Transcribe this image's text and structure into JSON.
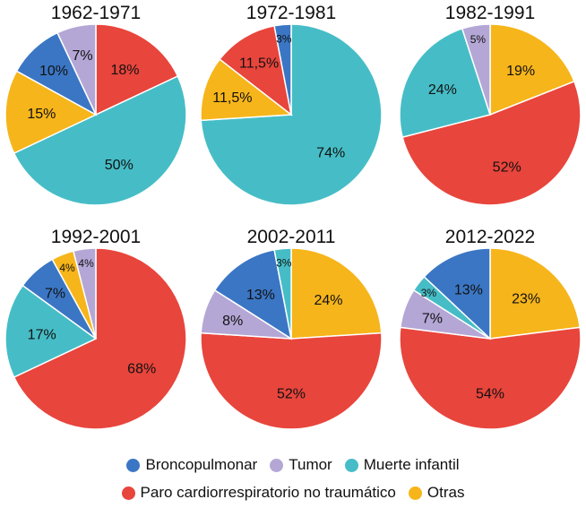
{
  "chart_data": [
    {
      "type": "pie",
      "title": "1962-1971",
      "slices": [
        {
          "category": "Paro cardiorrespiratorio no traumático",
          "value": 18,
          "label": "18%"
        },
        {
          "category": "Muerte infantil",
          "value": 50,
          "label": "50%"
        },
        {
          "category": "Otras",
          "value": 15,
          "label": "15%"
        },
        {
          "category": "Broncopulmonar",
          "value": 10,
          "label": "10%"
        },
        {
          "category": "Tumor",
          "value": 7,
          "label": "7%"
        }
      ]
    },
    {
      "type": "pie",
      "title": "1972-1981",
      "slices": [
        {
          "category": "Muerte infantil",
          "value": 74,
          "label": "74%"
        },
        {
          "category": "Otras",
          "value": 11.5,
          "label": "11,5%"
        },
        {
          "category": "Paro cardiorrespiratorio no traumático",
          "value": 11.5,
          "label": "11,5%"
        },
        {
          "category": "Broncopulmonar",
          "value": 3,
          "label": "3%"
        }
      ]
    },
    {
      "type": "pie",
      "title": "1982-1991",
      "slices": [
        {
          "category": "Otras",
          "value": 19,
          "label": "19%"
        },
        {
          "category": "Paro cardiorrespiratorio no traumático",
          "value": 52,
          "label": "52%"
        },
        {
          "category": "Muerte infantil",
          "value": 24,
          "label": "24%"
        },
        {
          "category": "Tumor",
          "value": 5,
          "label": "5%"
        }
      ]
    },
    {
      "type": "pie",
      "title": "1992-2001",
      "slices": [
        {
          "category": "Paro cardiorrespiratorio no traumático",
          "value": 68,
          "label": "68%"
        },
        {
          "category": "Muerte infantil",
          "value": 17,
          "label": "17%"
        },
        {
          "category": "Broncopulmonar",
          "value": 7,
          "label": "7%"
        },
        {
          "category": "Otras",
          "value": 4,
          "label": "4%"
        },
        {
          "category": "Tumor",
          "value": 4,
          "label": "4%"
        }
      ]
    },
    {
      "type": "pie",
      "title": "2002-2011",
      "slices": [
        {
          "category": "Otras",
          "value": 24,
          "label": "24%"
        },
        {
          "category": "Paro cardiorrespiratorio no traumático",
          "value": 52,
          "label": "52%"
        },
        {
          "category": "Tumor",
          "value": 8,
          "label": "8%"
        },
        {
          "category": "Broncopulmonar",
          "value": 13,
          "label": "13%"
        },
        {
          "category": "Muerte infantil",
          "value": 3,
          "label": "3%"
        }
      ]
    },
    {
      "type": "pie",
      "title": "2012-2022",
      "slices": [
        {
          "category": "Otras",
          "value": 23,
          "label": "23%"
        },
        {
          "category": "Paro cardiorrespiratorio no traumático",
          "value": 54,
          "label": "54%"
        },
        {
          "category": "Tumor",
          "value": 7,
          "label": "7%"
        },
        {
          "category": "Muerte infantil",
          "value": 3,
          "label": "3%"
        },
        {
          "category": "Broncopulmonar",
          "value": 13,
          "label": "13%"
        }
      ]
    }
  ],
  "legend": {
    "placement": "bottom",
    "items": [
      {
        "label": "Broncopulmonar",
        "color": "#3b76c4"
      },
      {
        "label": "Tumor",
        "color": "#b4a7d6"
      },
      {
        "label": "Muerte infantil",
        "color": "#46bdc6"
      },
      {
        "label": "Paro cardiorrespiratorio no traumático",
        "color": "#e8453c"
      },
      {
        "label": "Otras",
        "color": "#f6b51a"
      }
    ]
  },
  "colors": {
    "Broncopulmonar": "#3b76c4",
    "Tumor": "#b4a7d6",
    "Muerte infantil": "#46bdc6",
    "Paro cardiorrespiratorio no traumático": "#e8453c",
    "Otras": "#f6b51a"
  }
}
